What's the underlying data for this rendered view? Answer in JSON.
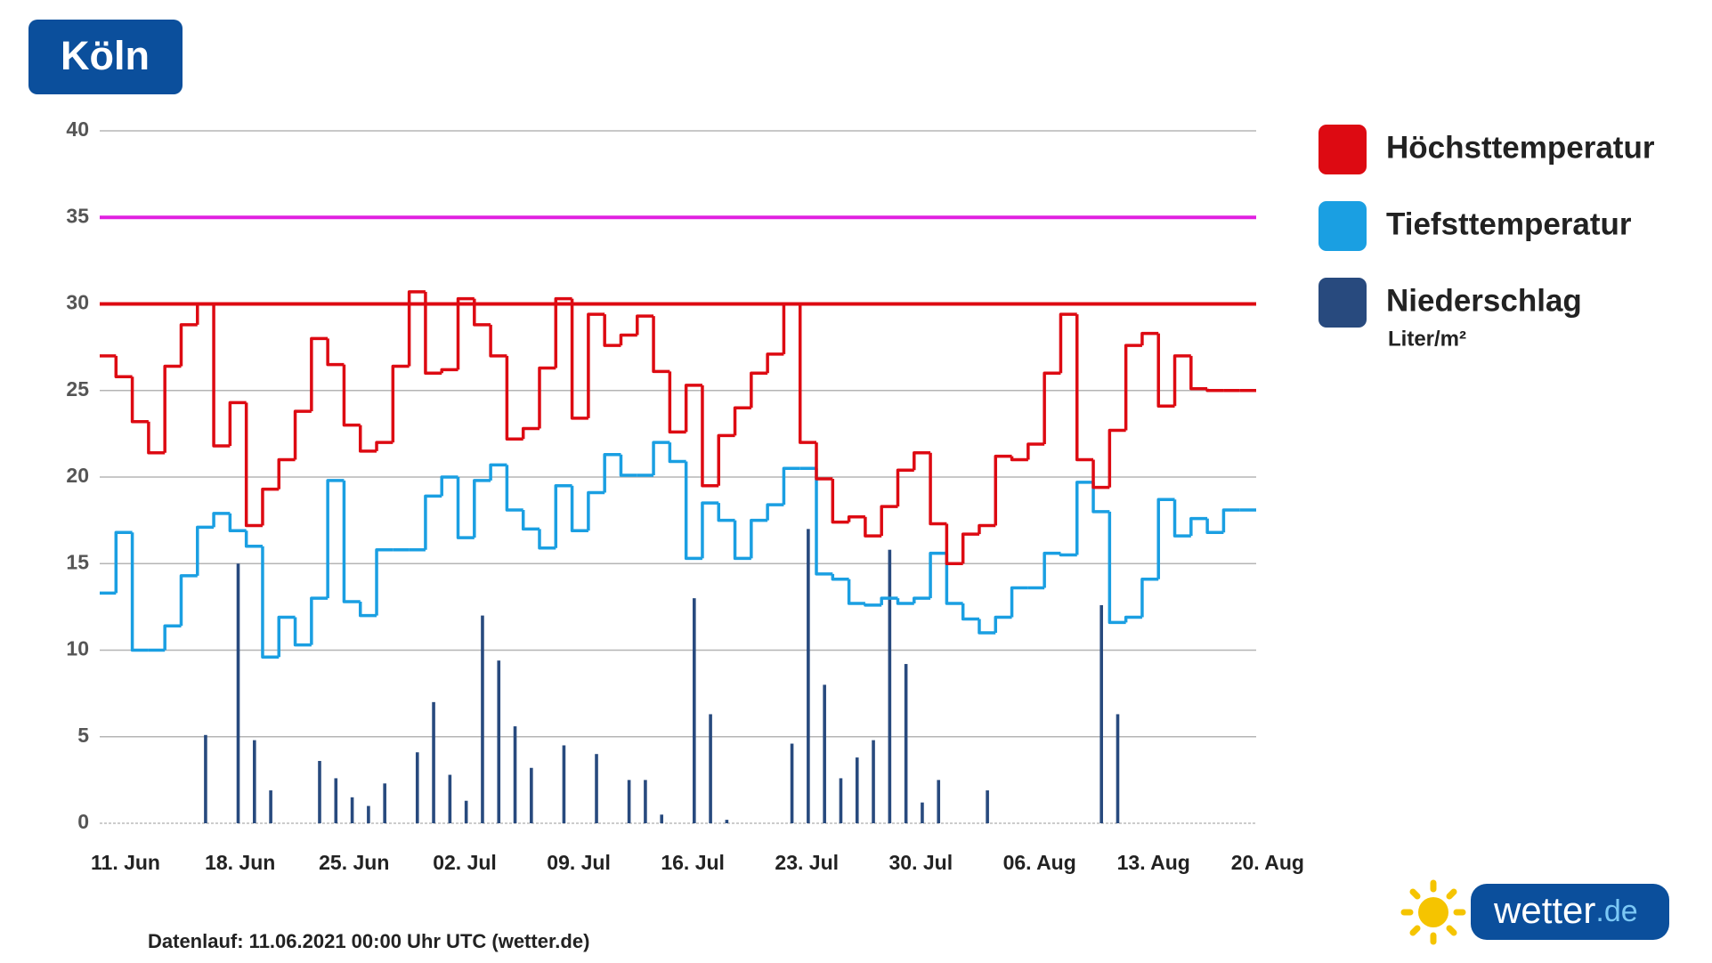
{
  "header": {
    "title": "Köln"
  },
  "chart_data": {
    "type": "step-line-bar",
    "categories": [
      "11. Jun",
      null,
      null,
      null,
      null,
      null,
      null,
      "18. Jun",
      null,
      null,
      null,
      null,
      null,
      null,
      "25. Jun",
      null,
      null,
      null,
      null,
      null,
      null,
      "02. Jul",
      null,
      null,
      null,
      null,
      null,
      null,
      "09. Jul",
      null,
      null,
      null,
      null,
      null,
      null,
      "16. Jul",
      null,
      null,
      null,
      null,
      null,
      null,
      "23. Jul",
      null,
      null,
      null,
      null,
      null,
      null,
      "30. Jul",
      null,
      null,
      null,
      null,
      null,
      null,
      "06. Aug",
      null,
      null,
      null,
      null,
      null,
      null,
      "13. Aug",
      null,
      null,
      null,
      null,
      null,
      null,
      "20. Aug"
    ],
    "series": [
      {
        "name": "Höchsttemperatur",
        "color": "#dd0a12",
        "kind": "step",
        "values": [
          27,
          25.8,
          23.2,
          21.4,
          26.4,
          28.8,
          30,
          21.8,
          24.3,
          17.2,
          19.3,
          21,
          23.8,
          28,
          26.5,
          23,
          21.5,
          22,
          26.4,
          30.7,
          26,
          26.2,
          30.3,
          28.8,
          27,
          22.2,
          22.8,
          26.3,
          30.3,
          23.4,
          29.4,
          27.6,
          28.2,
          29.3,
          26.1,
          22.6,
          25.3,
          19.5,
          22.4,
          24,
          26,
          27.1,
          30,
          22,
          19.9,
          17.4,
          17.7,
          16.6,
          18.3,
          20.4,
          21.4,
          17.3,
          15,
          16.7,
          17.2,
          21.2,
          21,
          21.9,
          26,
          29.4,
          21,
          19.4,
          22.7,
          27.6,
          28.3,
          24.1,
          27,
          25.1,
          25,
          25,
          25
        ]
      },
      {
        "name": "Tiefsttemperatur",
        "color": "#1a9fe2",
        "kind": "step",
        "values": [
          13.3,
          16.8,
          10,
          10,
          11.4,
          14.3,
          17.1,
          17.9,
          16.9,
          16,
          9.6,
          11.9,
          10.3,
          13,
          19.8,
          12.8,
          12,
          15.8,
          15.8,
          15.8,
          18.9,
          20,
          16.5,
          19.8,
          20.7,
          18.1,
          17,
          15.9,
          19.5,
          16.9,
          19.1,
          21.3,
          20.1,
          20.1,
          22,
          20.9,
          15.3,
          18.5,
          17.5,
          15.3,
          17.5,
          18.4,
          20.5,
          20.5,
          14.4,
          14.1,
          12.7,
          12.6,
          13,
          12.7,
          13,
          15.6,
          12.7,
          11.8,
          11,
          11.9,
          13.6,
          13.6,
          15.6,
          15.5,
          19.7,
          18,
          11.6,
          11.9,
          14.1,
          18.7,
          16.6,
          17.6,
          16.8,
          18.1,
          18.1
        ]
      },
      {
        "name": "Niederschlag",
        "unit": "Liter/m²",
        "color": "#284a7e",
        "kind": "bar",
        "values": [
          0,
          0,
          0,
          0,
          0,
          0,
          5.1,
          0,
          15,
          4.8,
          1.9,
          0,
          0,
          3.6,
          2.6,
          1.5,
          1,
          2.3,
          0,
          4.1,
          7,
          2.8,
          1.3,
          12,
          9.4,
          5.6,
          3.2,
          0,
          4.5,
          0,
          4,
          0,
          2.5,
          2.5,
          0.5,
          0,
          13,
          6.3,
          0.2,
          0,
          0,
          0,
          4.6,
          17,
          8,
          2.6,
          3.8,
          4.8,
          15.8,
          9.2,
          1.2,
          2.5,
          0,
          0,
          1.9,
          0,
          0,
          0,
          0,
          0,
          0,
          12.6,
          6.3,
          0,
          0,
          0,
          0,
          0,
          0,
          0,
          0
        ]
      }
    ],
    "reference_lines": [
      {
        "value": 35,
        "color": "#e020e0"
      },
      {
        "value": 30,
        "color": "#dd0a12"
      }
    ],
    "ylim": [
      0,
      40
    ],
    "yticks": [
      0,
      5,
      10,
      15,
      20,
      25,
      30,
      35,
      40
    ],
    "grid": true
  },
  "footer": {
    "text": "Datenlauf: 11.06.2021 00:00 Uhr UTC (wetter.de)"
  },
  "logo": {
    "parts": [
      "wetter",
      ".de"
    ]
  }
}
